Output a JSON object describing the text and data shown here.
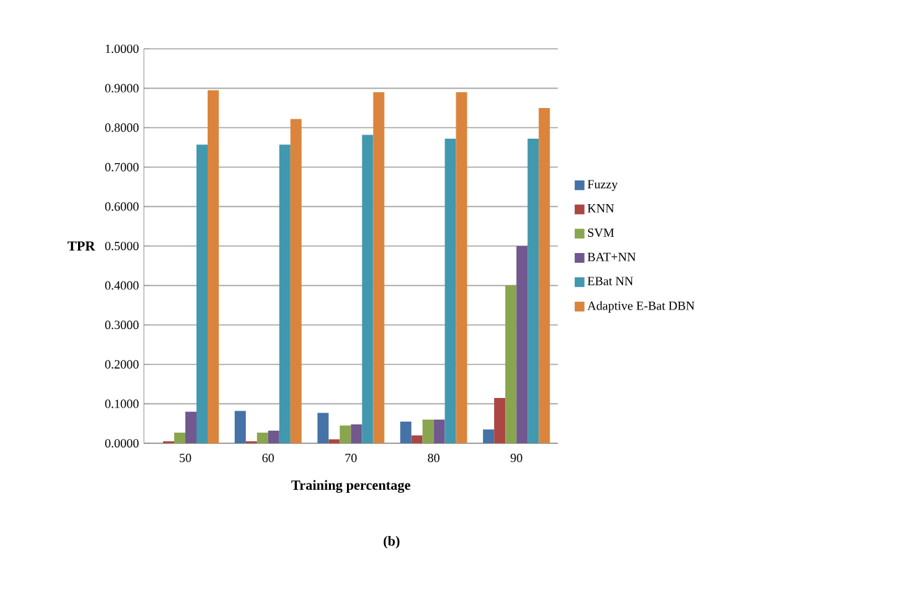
{
  "chart_data": {
    "type": "bar",
    "xlabel": "Training percentage",
    "ylabel": "TPR",
    "categories": [
      "50",
      "60",
      "70",
      "80",
      "90"
    ],
    "series": [
      {
        "name": "Fuzzy",
        "color": "#4572a7",
        "values": [
          0,
          0.082,
          0.077,
          0.055,
          0.035
        ]
      },
      {
        "name": "KNN",
        "color": "#aa4643",
        "values": [
          0.005,
          0.005,
          0.01,
          0.02,
          0.115
        ]
      },
      {
        "name": "SVM",
        "color": "#89a54e",
        "values": [
          0.027,
          0.027,
          0.045,
          0.06,
          0.4
        ]
      },
      {
        "name": "BAT+NN",
        "color": "#71588f",
        "values": [
          0.08,
          0.032,
          0.048,
          0.06,
          0.5
        ]
      },
      {
        "name": "EBat NN",
        "color": "#4198af",
        "values": [
          0.757,
          0.757,
          0.782,
          0.772,
          0.772
        ]
      },
      {
        "name": "Adaptive E-Bat DBN",
        "color": "#db843d",
        "values": [
          0.895,
          0.822,
          0.89,
          0.89,
          0.85
        ]
      }
    ],
    "ylim": [
      0,
      1
    ],
    "yticks": [
      {
        "value": 0,
        "label": "0.0000"
      },
      {
        "value": 0.1,
        "label": "0.1000"
      },
      {
        "value": 0.2,
        "label": "0.2000"
      },
      {
        "value": 0.3,
        "label": "0.3000"
      },
      {
        "value": 0.4,
        "label": "0.4000"
      },
      {
        "value": 0.5,
        "label": "0.5000"
      },
      {
        "value": 0.6,
        "label": "0.6000"
      },
      {
        "value": 0.7,
        "label": "0.7000"
      },
      {
        "value": 0.8,
        "label": "0.8000"
      },
      {
        "value": 0.9,
        "label": "0.9000"
      },
      {
        "value": 1,
        "label": "1.0000"
      }
    ],
    "grid": "y",
    "legend": "right",
    "annotations": [
      "(b)"
    ]
  }
}
